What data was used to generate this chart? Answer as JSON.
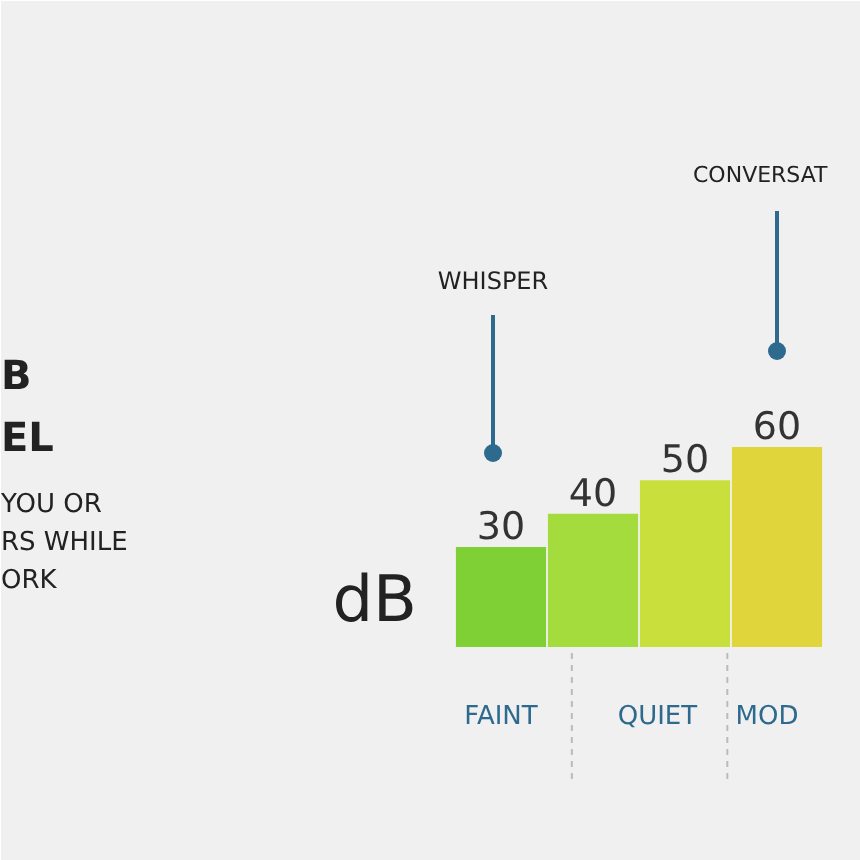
{
  "chart_data": {
    "type": "bar",
    "ylabel": "dB",
    "categories": [
      null,
      null,
      null,
      null
    ],
    "values": [
      30,
      40,
      50,
      60
    ],
    "colors": [
      "#7fd034",
      "#a4dc3e",
      "#c9e03c",
      "#e0d63c"
    ],
    "data_labels": true,
    "annotations": [
      "WHISPER",
      "CONVERSAT",
      "FAINT",
      "QUIET",
      "MOD",
      "B",
      "EL",
      "YOU OR",
      "RS WHILE",
      "ORK"
    ]
  }
}
